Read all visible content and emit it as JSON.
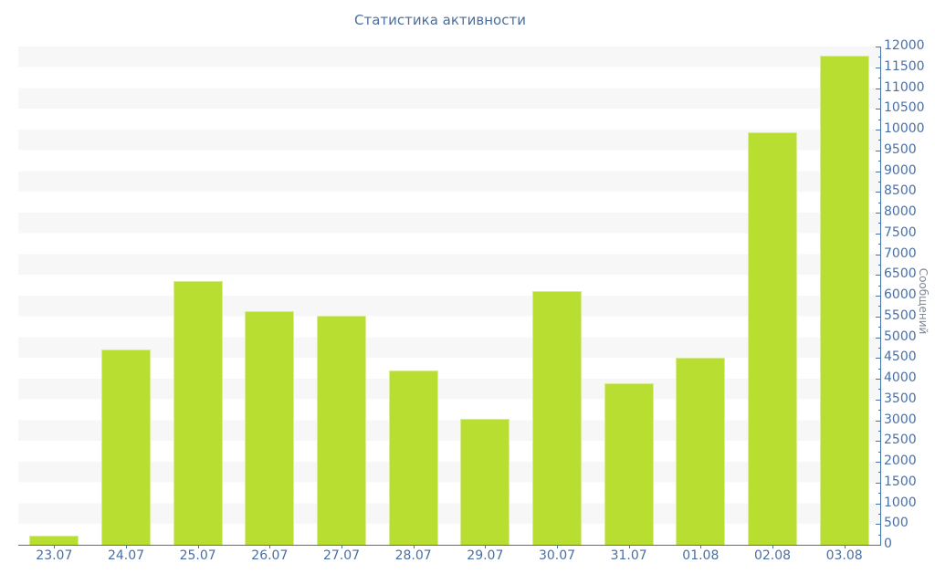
{
  "header": {
    "title": "Статистика активности"
  },
  "chart_data": {
    "type": "bar",
    "title": "Статистика активности",
    "categories": [
      "23.07",
      "24.07",
      "25.07",
      "26.07",
      "27.07",
      "28.07",
      "29.07",
      "30.07",
      "31.07",
      "01.08",
      "02.08",
      "03.08"
    ],
    "values": [
      220,
      4700,
      6350,
      5630,
      5510,
      4200,
      3030,
      6110,
      3900,
      4500,
      9925,
      11780
    ],
    "xlabel": "",
    "ylabel": "Сообщений",
    "ylim": [
      0,
      12000
    ],
    "y_tick_step": 500,
    "y_minor_tick_step": 250,
    "y_tick_labels": [
      "0",
      "500",
      "1000",
      "1500",
      "2000",
      "2500",
      "3000",
      "3500",
      "4000",
      "4500",
      "5000",
      "5500",
      "6000",
      "6500",
      "7000",
      "7500",
      "8000",
      "8500",
      "9000",
      "9500",
      "10000",
      "10500",
      "11000",
      "11500",
      "12000"
    ],
    "yaxis_position": "right",
    "legend": "none",
    "grid": "alternating horizontal bands",
    "colors": {
      "bar_fill": "#b8de32",
      "bar_border": "#d9ec94",
      "axis_line": "#4572a7",
      "tick_label": "#4a6fa5",
      "title_text": "#4a6f9e",
      "yaxis_title_text": "#7e8894",
      "band_gray": "#f7f7f7",
      "band_white": "#ffffff"
    }
  }
}
